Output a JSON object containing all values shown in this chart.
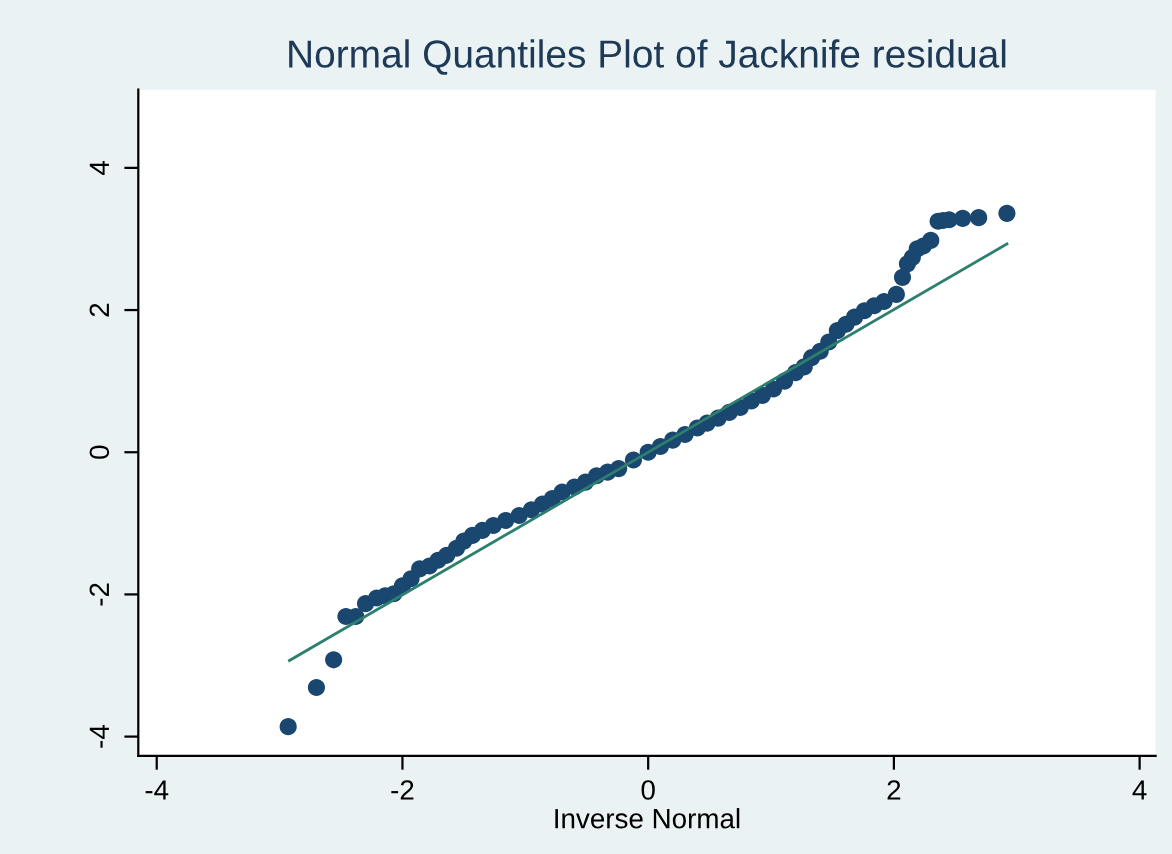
{
  "chart_data": {
    "type": "scatter",
    "title": "Normal Quantiles Plot of Jacknife residual",
    "xlabel": "Inverse Normal",
    "xlim": [
      -4.15,
      4.13
    ],
    "ylim": [
      -4.27,
      5.1
    ],
    "xticks": [
      {
        "value": -4,
        "label": "-4"
      },
      {
        "value": -2,
        "label": "-2"
      },
      0,
      2,
      4
    ],
    "yticks": [
      {
        "value": -4,
        "label": "-4"
      },
      {
        "value": -2,
        "label": "-2"
      },
      0,
      2,
      4
    ],
    "grid": false,
    "legend": false,
    "marker": "circle",
    "series": [
      {
        "color": "#1a476f",
        "x": [
          -2.93,
          -2.7,
          -2.56,
          -2.46,
          -2.38,
          -2.3,
          -2.21,
          -2.14,
          -2.07,
          -2.0,
          -1.93,
          -1.86,
          -1.78,
          -1.71,
          -1.64,
          -1.56,
          -1.5,
          -1.43,
          -1.35,
          -1.26,
          -1.16,
          -1.05,
          -0.95,
          -0.86,
          -0.78,
          -0.7,
          -0.6,
          -0.51,
          -0.42,
          -0.33,
          -0.24,
          -0.12,
          0.0,
          0.1,
          0.2,
          0.3,
          0.4,
          0.48,
          0.57,
          0.66,
          0.75,
          0.84,
          0.93,
          1.02,
          1.11,
          1.2,
          1.27,
          1.33,
          1.4,
          1.47,
          1.54,
          1.61,
          1.68,
          1.76,
          1.84,
          1.92,
          2.02,
          2.07,
          2.11,
          2.15,
          2.19,
          2.24,
          2.3,
          2.36,
          2.4,
          2.45,
          2.56,
          2.69,
          2.92
        ],
        "values": [
          -3.86,
          -3.31,
          -2.92,
          -2.31,
          -2.31,
          -2.13,
          -2.05,
          -2.02,
          -1.99,
          -1.88,
          -1.78,
          -1.64,
          -1.6,
          -1.52,
          -1.45,
          -1.35,
          -1.25,
          -1.17,
          -1.1,
          -1.03,
          -0.96,
          -0.89,
          -0.81,
          -0.73,
          -0.65,
          -0.56,
          -0.49,
          -0.42,
          -0.33,
          -0.28,
          -0.23,
          -0.11,
          0.0,
          0.08,
          0.17,
          0.25,
          0.34,
          0.41,
          0.48,
          0.56,
          0.63,
          0.72,
          0.8,
          0.89,
          1.0,
          1.12,
          1.2,
          1.33,
          1.42,
          1.55,
          1.71,
          1.8,
          1.9,
          1.99,
          2.06,
          2.12,
          2.22,
          2.46,
          2.65,
          2.74,
          2.86,
          2.9,
          2.98,
          3.25,
          3.26,
          3.27,
          3.29,
          3.3,
          3.36
        ]
      },
      {
        "type": "line",
        "color": "#2d7f6e",
        "x": [
          -2.92,
          2.92
        ],
        "values": [
          -2.93,
          2.93
        ],
        "marker": "none",
        "line_style": "solid"
      }
    ]
  }
}
